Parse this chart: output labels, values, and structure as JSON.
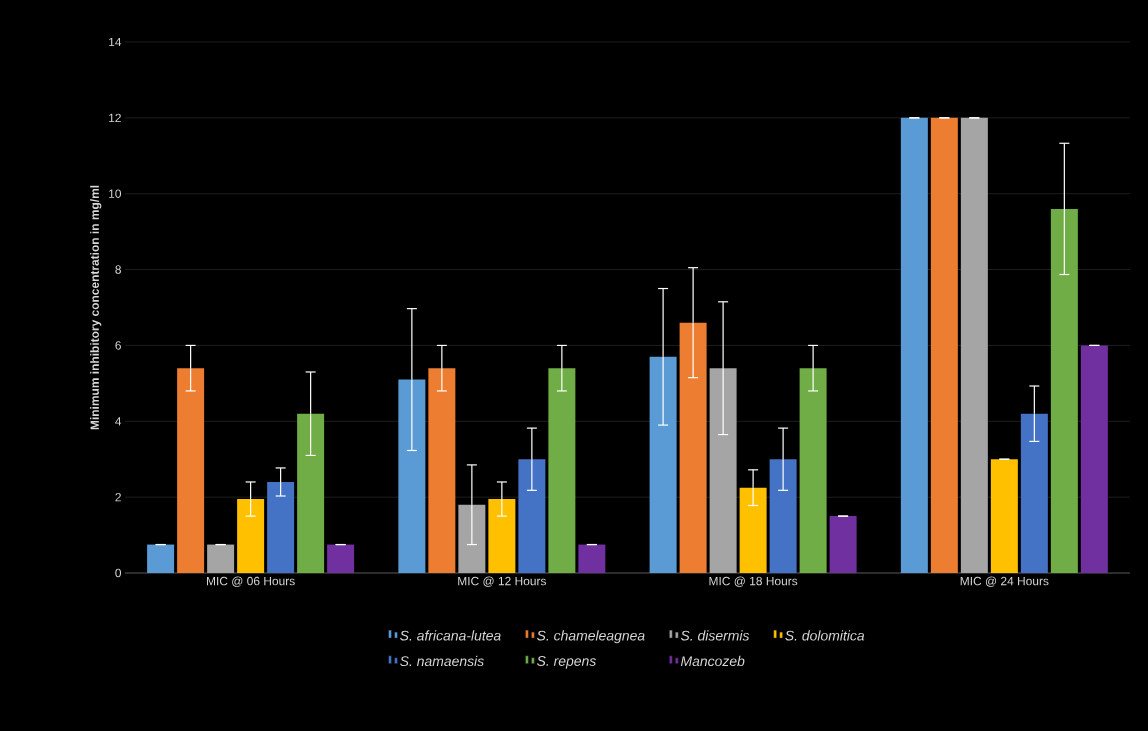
{
  "chart_data": {
    "type": "bar",
    "ylabel": "Minimum inhibitory concentration in mg/ml",
    "categories": [
      "MIC @ 06 Hours",
      "MIC @ 12 Hours",
      "MIC @ 18 Hours",
      "MIC @ 24 Hours"
    ],
    "series": [
      {
        "name": "S. africana-lutea",
        "color": "#5b9bd5",
        "values": [
          0.75,
          5.1,
          5.7,
          12
        ],
        "errors": [
          0,
          1.87,
          1.8,
          0
        ]
      },
      {
        "name": "S. chameleagnea",
        "color": "#ed7d31",
        "values": [
          5.4,
          5.4,
          6.6,
          12
        ],
        "errors": [
          0.6,
          0.6,
          1.45,
          0
        ]
      },
      {
        "name": "S. disermis",
        "color": "#a5a5a5",
        "values": [
          0.75,
          1.8,
          5.4,
          12
        ],
        "errors": [
          0,
          1.05,
          1.75,
          0
        ]
      },
      {
        "name": "S. dolomitica",
        "color": "#ffc000",
        "values": [
          1.95,
          1.95,
          2.25,
          3.0
        ],
        "errors": [
          0.45,
          0.45,
          0.47,
          0
        ]
      },
      {
        "name": "S. namaensis",
        "color": "#4472c4",
        "values": [
          2.4,
          3.0,
          3.0,
          4.2
        ],
        "errors": [
          0.37,
          0.82,
          0.82,
          0.73
        ]
      },
      {
        "name": "S. repens",
        "color": "#70ad47",
        "values": [
          4.2,
          5.4,
          5.4,
          9.6
        ],
        "errors": [
          1.1,
          0.6,
          0.6,
          1.73
        ]
      },
      {
        "name": "Mancozeb",
        "color": "#7030a0",
        "values": [
          0.75,
          0.75,
          1.5,
          6.0
        ],
        "errors": [
          0,
          0,
          0,
          0
        ]
      }
    ],
    "ylim": [
      0,
      14
    ],
    "yticks": [
      0,
      2,
      4,
      6,
      8,
      10,
      12,
      14
    ],
    "grid": "y",
    "legend": "bottom"
  }
}
